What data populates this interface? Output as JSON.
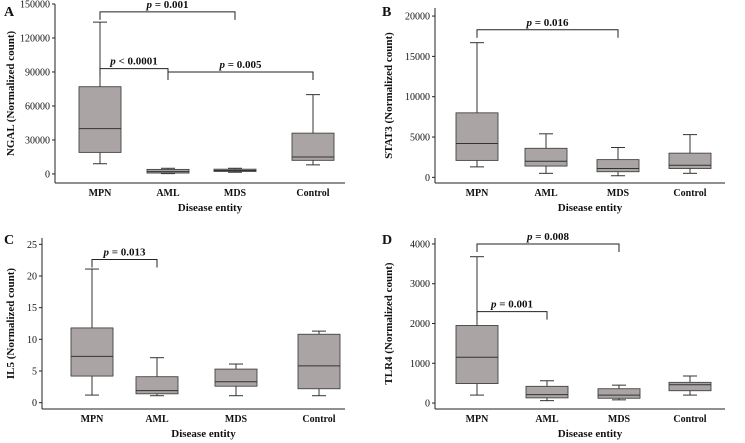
{
  "chart_data": [
    {
      "type": "box",
      "panel": "A",
      "ylabel": "NGAL (Normalized count)",
      "xlabel": "Disease entity",
      "categories": [
        "MPN",
        "AML",
        "MDS",
        "Control"
      ],
      "ylim": [
        -8000,
        150000
      ],
      "yticks": [
        0,
        30000,
        60000,
        90000,
        120000,
        150000
      ],
      "boxes": [
        {
          "min": 9000,
          "q1": 19000,
          "median": 40000,
          "q3": 77000,
          "max": 134000
        },
        {
          "min": 300,
          "q1": 800,
          "median": 2000,
          "q3": 4000,
          "max": 5000
        },
        {
          "min": 1500,
          "q1": 2200,
          "median": 3000,
          "q3": 4200,
          "max": 5000
        },
        {
          "min": 8000,
          "q1": 12000,
          "median": 15000,
          "q3": 36000,
          "max": 70000
        }
      ],
      "significance": [
        {
          "from": 0,
          "to": 2,
          "y": 143000,
          "text": "= 0.001",
          "label_anchor": "middle"
        },
        {
          "from": 0,
          "to": 1,
          "y": 93000,
          "text": "< 0.0001",
          "label_anchor": "middle"
        },
        {
          "from": 1,
          "to": 3,
          "y": 90000,
          "text": "= 0.005",
          "label_anchor": "middle"
        }
      ]
    },
    {
      "type": "box",
      "panel": "B",
      "ylabel": "STAT3 (Normalized count)",
      "xlabel": "Disease entity",
      "categories": [
        "MPN",
        "AML",
        "MDS",
        "Control"
      ],
      "ylim": [
        -700,
        21000
      ],
      "yticks": [
        0,
        5000,
        10000,
        15000,
        20000
      ],
      "boxes": [
        {
          "min": 1300,
          "q1": 2100,
          "median": 4200,
          "q3": 8000,
          "max": 16700
        },
        {
          "min": 500,
          "q1": 1400,
          "median": 2000,
          "q3": 3600,
          "max": 5400
        },
        {
          "min": 200,
          "q1": 700,
          "median": 1100,
          "q3": 2200,
          "max": 3700
        },
        {
          "min": 500,
          "q1": 1100,
          "median": 1500,
          "q3": 3000,
          "max": 5300
        }
      ],
      "significance": [
        {
          "from": 0,
          "to": 2,
          "y": 18300,
          "text": "= 0.016",
          "label_anchor": "middle"
        }
      ]
    },
    {
      "type": "box",
      "panel": "C",
      "ylabel": "IL5 (Normalized count)",
      "xlabel": "Disease entity",
      "categories": [
        "MPN",
        "AML",
        "MDS",
        "Control"
      ],
      "ylim": [
        -1,
        26
      ],
      "yticks": [
        0,
        5,
        10,
        15,
        20,
        25
      ],
      "boxes": [
        {
          "min": 1.2,
          "q1": 4.2,
          "median": 7.3,
          "q3": 11.8,
          "max": 21.1
        },
        {
          "min": 1.1,
          "q1": 1.4,
          "median": 1.9,
          "q3": 4.1,
          "max": 7.1
        },
        {
          "min": 1.1,
          "q1": 2.6,
          "median": 3.3,
          "q3": 5.3,
          "max": 6.1
        },
        {
          "min": 1.1,
          "q1": 2.2,
          "median": 5.8,
          "q3": 10.8,
          "max": 11.3
        }
      ],
      "significance": [
        {
          "from": 0,
          "to": 1,
          "y": 22.6,
          "text": "= 0.013",
          "label_anchor": "middle"
        }
      ]
    },
    {
      "type": "box",
      "panel": "D",
      "ylabel": "TLR4 (Normalized count)",
      "xlabel": "Disease entity",
      "categories": [
        "MPN",
        "AML",
        "MDS",
        "Control"
      ],
      "ylim": [
        -150,
        4150
      ],
      "yticks": [
        0,
        1000,
        2000,
        3000,
        4000
      ],
      "boxes": [
        {
          "min": 200,
          "q1": 490,
          "median": 1150,
          "q3": 1950,
          "max": 3680
        },
        {
          "min": 60,
          "q1": 130,
          "median": 210,
          "q3": 420,
          "max": 560
        },
        {
          "min": 80,
          "q1": 120,
          "median": 200,
          "q3": 360,
          "max": 450
        },
        {
          "min": 200,
          "q1": 310,
          "median": 460,
          "q3": 520,
          "max": 680
        }
      ],
      "significance": [
        {
          "from": 0,
          "to": 2,
          "y": 4000,
          "text": "= 0.008",
          "label_anchor": "middle"
        },
        {
          "from": 0,
          "to": 1,
          "y": 2300,
          "text": "= 0.001",
          "label_anchor": "middle"
        }
      ]
    }
  ]
}
